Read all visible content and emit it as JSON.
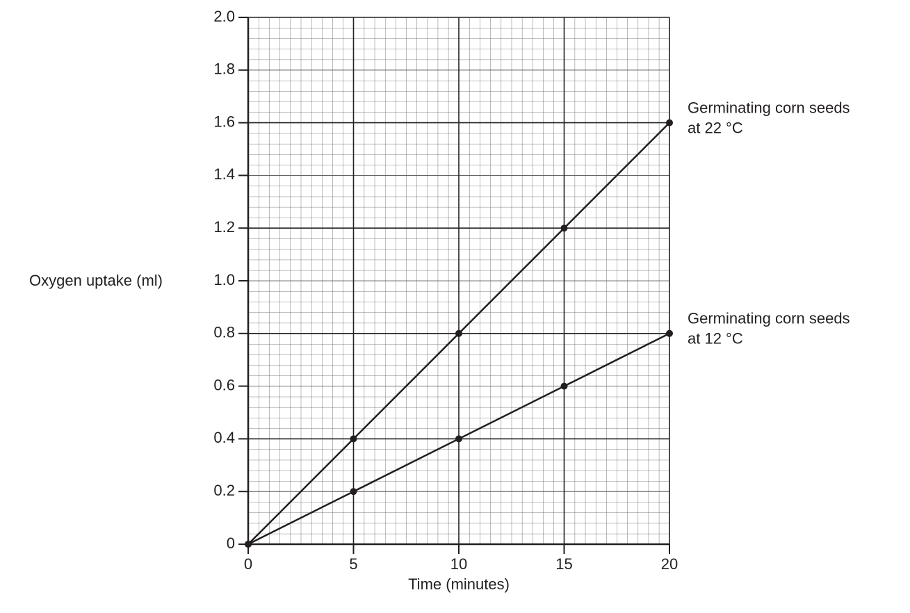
{
  "chart_data": {
    "type": "line",
    "x_label": "Time (minutes)",
    "y_label": "Oxygen uptake (ml)",
    "x": [
      0,
      5,
      10,
      15,
      20
    ],
    "series": [
      {
        "label_lines": [
          "Germinating corn seeds",
          "at 22 °C"
        ],
        "color": "#231f20",
        "values": [
          0,
          0.4,
          0.8,
          1.2,
          1.6
        ]
      },
      {
        "label_lines": [
          "Germinating corn seeds",
          "at 12 °C"
        ],
        "color": "#231f20",
        "values": [
          0,
          0.2,
          0.4,
          0.6,
          0.8
        ]
      }
    ],
    "xlim": [
      0,
      20
    ],
    "xticks": [
      0,
      5,
      10,
      15,
      20
    ],
    "ylim": [
      0,
      2
    ],
    "yticks": [
      0,
      0.2,
      0.4,
      0.6,
      0.8,
      {
        "value": 1,
        "label": "1.0"
      },
      1.2,
      1.4,
      1.6,
      1.8,
      {
        "value": 2,
        "label": "2.0"
      }
    ],
    "grid": true
  }
}
